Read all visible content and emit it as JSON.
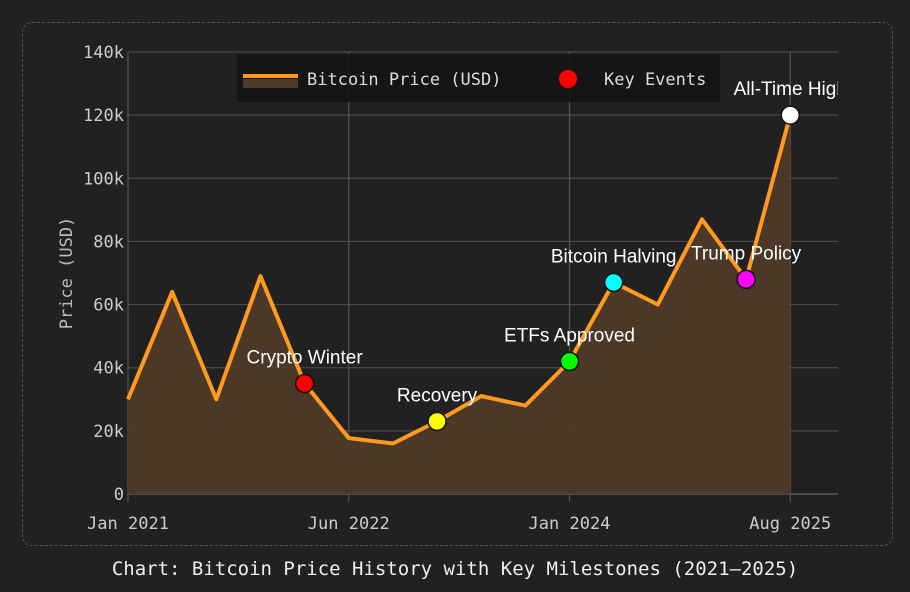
{
  "chart_data": {
    "type": "line",
    "caption": "Chart: Bitcoin Price History with Key Milestones (2021–2025)",
    "ylabel": "Price (USD)",
    "xlabel": "",
    "ylim": [
      0,
      140000
    ],
    "y_ticks": [
      0,
      20000,
      40000,
      60000,
      80000,
      100000,
      120000,
      140000
    ],
    "y_tick_labels": [
      "0",
      "20k",
      "40k",
      "60k",
      "80k",
      "100k",
      "120k",
      "140k"
    ],
    "x_tick_labels": [
      "Jan 2021",
      "Jun 2022",
      "Jan 2024",
      "Aug 2025"
    ],
    "x_tick_indices": [
      0,
      5,
      10,
      15
    ],
    "grid": true,
    "legend_position": "top",
    "legend": [
      "Bitcoin Price (USD)",
      "Key Events"
    ],
    "series": [
      {
        "name": "Bitcoin Price (USD)",
        "color": "#ff9a1f",
        "fill": "#4e3a28",
        "x": [
          "2021-01",
          "2021-04",
          "2021-08",
          "2021-11",
          "2022-03",
          "2022-06",
          "2022-10",
          "2023-01",
          "2023-05",
          "2023-09",
          "2024-01",
          "2024-04",
          "2024-08",
          "2024-12",
          "2025-04",
          "2025-08"
        ],
        "values": [
          30000,
          64000,
          30000,
          69000,
          35000,
          17700,
          16000,
          23000,
          31000,
          28000,
          42000,
          67000,
          60000,
          87000,
          68000,
          120000
        ]
      }
    ],
    "events": [
      {
        "label": "Crypto Winter",
        "index": 4,
        "value": 35000,
        "color": "#ff0000"
      },
      {
        "label": "Recovery",
        "index": 7,
        "value": 23000,
        "color": "#ffff00"
      },
      {
        "label": "ETFs Approved",
        "index": 10,
        "value": 42000,
        "color": "#00ff00"
      },
      {
        "label": "Bitcoin Halving",
        "index": 11,
        "value": 67000,
        "color": "#00ffff"
      },
      {
        "label": "Trump Policy",
        "index": 14,
        "value": 68000,
        "color": "#ff00ff"
      },
      {
        "label": "All-Time High",
        "index": 15,
        "value": 120000,
        "color": "#ffffff"
      }
    ],
    "legend_marker_color": "#ff0000"
  }
}
